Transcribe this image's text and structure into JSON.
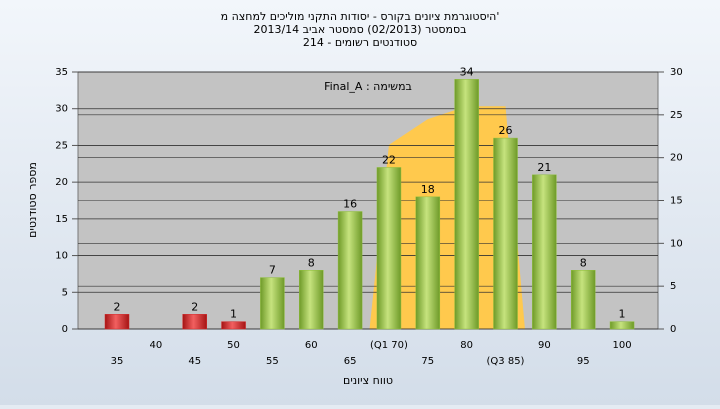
{
  "chart_data": {
    "type": "bar",
    "title": "היסטוגרמת ציונים בקורס - יסודות התקני מוליכים למחצה מ'",
    "subtitle": [
      "בסמסטר  (02/2013)  סמסטר אביב 2013/14",
      "סטודנטים רשומים - 214"
    ],
    "annotation": "Final_A : במשימה",
    "x_label": "טווח ציונים",
    "y_label": "מספר סטודנטים",
    "categories": [
      "35",
      "40",
      "45",
      "50",
      "55",
      "60",
      "65",
      "(Q1 70)",
      "75",
      "80",
      "(Q3 85)",
      "90",
      "95",
      "100"
    ],
    "values": [
      2,
      null,
      2,
      1,
      7,
      8,
      16,
      22,
      18,
      34,
      26,
      21,
      8,
      1
    ],
    "colors": [
      "#d42a2a",
      null,
      "#d42a2a",
      "#d42a2a",
      "#8fbf3c",
      "#8fbf3c",
      "#8fbf3c",
      "#8fbf3c",
      "#8fbf3c",
      "#8fbf3c",
      "#8fbf3c",
      "#8fbf3c",
      "#8fbf3c",
      "#8fbf3c"
    ],
    "area": {
      "axis": "y2",
      "color": "#ffc94d",
      "values": [
        null,
        null,
        null,
        null,
        null,
        null,
        null,
        21.5,
        24.5,
        26,
        26,
        null,
        null,
        null
      ]
    },
    "ylim": [
      0,
      35
    ],
    "yticks": [
      0,
      5,
      10,
      15,
      20,
      25,
      30,
      35
    ],
    "y2lim": [
      0,
      30
    ],
    "y2ticks": [
      0,
      5,
      10,
      15,
      20,
      25,
      30
    ],
    "grid": true
  }
}
